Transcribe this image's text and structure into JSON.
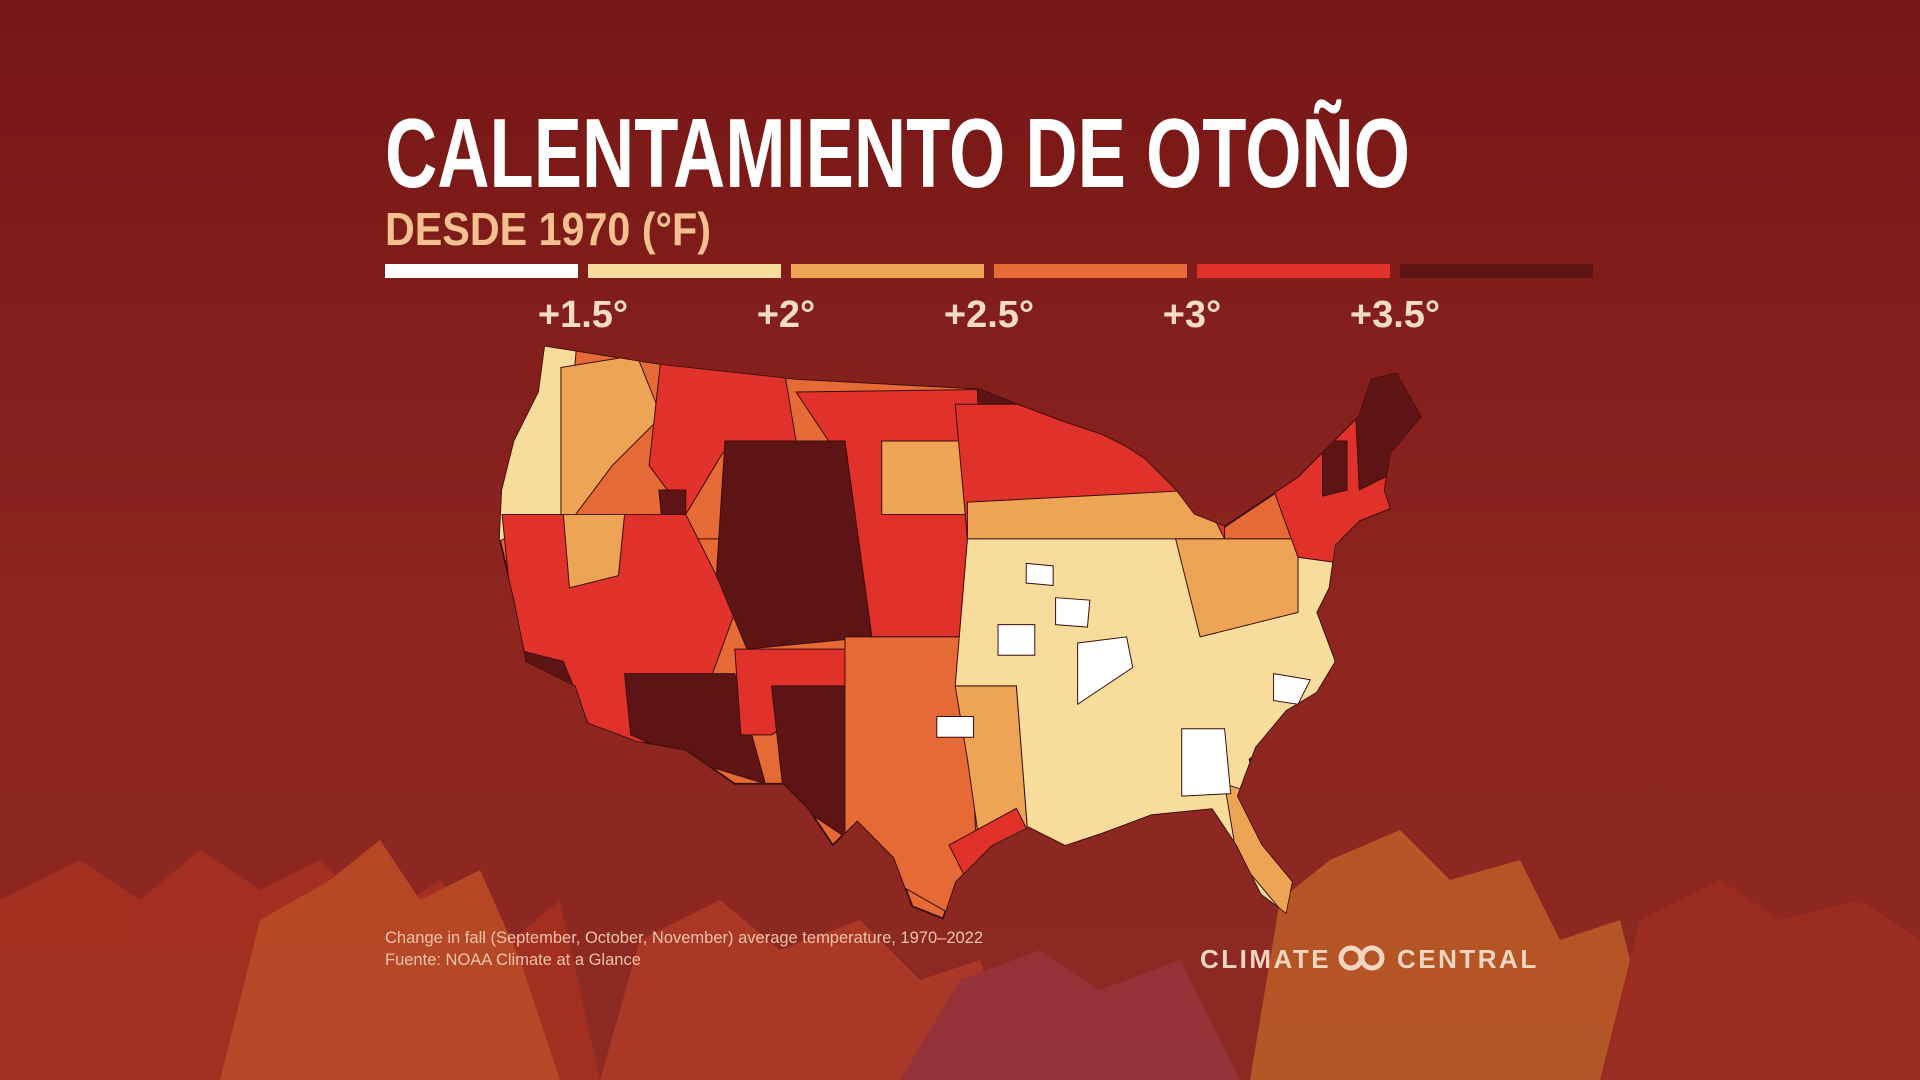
{
  "title": "CALENTAMIENTO DE OTOÑO",
  "subtitle": "DESDE 1970 (°F)",
  "legend": {
    "colors": [
      "#ffffff",
      "#f7dc9c",
      "#eea455",
      "#e56a36",
      "#e0312a",
      "#5e1414"
    ],
    "labels": [
      "+1.5°",
      "+2°",
      "+2.5°",
      "+3°",
      "+3.5°"
    ]
  },
  "footnote": [
    "Change in fall (September, October, November) average temperature, 1970–2022",
    "Fuente: NOAA Climate at a Glance"
  ],
  "logo": {
    "left": "CLIMATE",
    "right": "CENTRAL"
  }
}
